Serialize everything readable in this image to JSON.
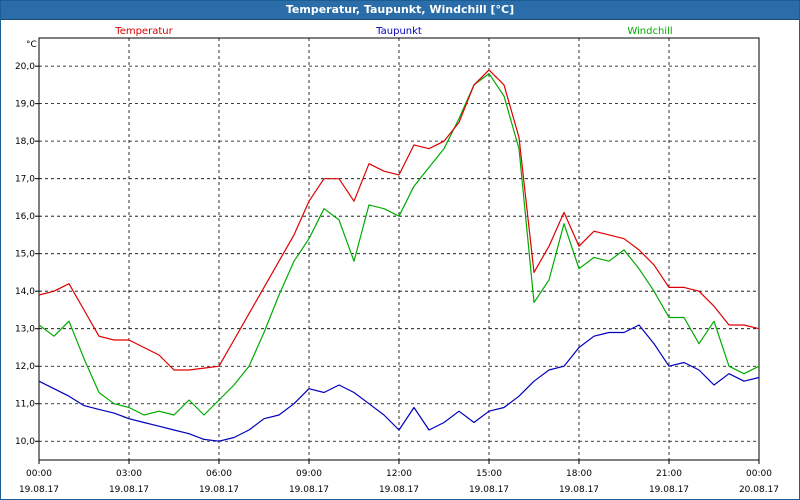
{
  "window": {
    "title": "Temperatur, Taupunkt, Windchill [°C]"
  },
  "chart_data": {
    "type": "line",
    "title": "Temperatur, Taupunkt, Windchill [°C]",
    "ylabel": "°C",
    "xlabel": "",
    "ylim": [
      9.5,
      20.75
    ],
    "xlim": [
      0,
      24
    ],
    "grid": true,
    "yticks": [
      "10,0",
      "11,0",
      "12,0",
      "13,0",
      "14,0",
      "15,0",
      "16,0",
      "17,0",
      "18,0",
      "19,0",
      "20,0"
    ],
    "xticks": [
      {
        "time": "00:00",
        "date": "19.08.17"
      },
      {
        "time": "03:00",
        "date": "19.08.17"
      },
      {
        "time": "06:00",
        "date": "19.08.17"
      },
      {
        "time": "09:00",
        "date": "19.08.17"
      },
      {
        "time": "12:00",
        "date": "19.08.17"
      },
      {
        "time": "15:00",
        "date": "19.08.17"
      },
      {
        "time": "18:00",
        "date": "19.08.17"
      },
      {
        "time": "21:00",
        "date": "19.08.17"
      },
      {
        "time": "00:00",
        "date": "20.08.17"
      }
    ],
    "x": [
      0,
      0.5,
      1,
      1.5,
      2,
      2.5,
      3,
      3.5,
      4,
      4.5,
      5,
      5.5,
      6,
      6.5,
      7,
      7.5,
      8,
      8.5,
      9,
      9.5,
      10,
      10.5,
      11,
      11.5,
      12,
      12.5,
      13,
      13.5,
      14,
      14.5,
      15,
      15.5,
      16,
      16.5,
      17,
      17.5,
      18,
      18.5,
      19,
      19.5,
      20,
      20.5,
      21,
      21.5,
      22,
      22.5,
      23,
      23.5,
      24
    ],
    "series": [
      {
        "name": "Temperatur",
        "color": "#dd0000",
        "values": [
          13.9,
          14.0,
          14.2,
          13.5,
          12.8,
          12.7,
          12.7,
          12.5,
          12.3,
          11.9,
          11.9,
          11.95,
          12.0,
          12.7,
          13.4,
          14.1,
          14.8,
          15.5,
          16.4,
          17.0,
          17.0,
          16.4,
          17.4,
          17.2,
          17.1,
          17.9,
          17.8,
          18.0,
          18.5,
          19.5,
          19.9,
          19.5,
          18.1,
          14.5,
          15.2,
          16.1,
          15.2,
          15.6,
          15.5,
          15.4,
          15.1,
          14.7,
          14.1,
          14.1,
          14.0,
          13.6,
          13.1,
          13.1,
          13.0
        ]
      },
      {
        "name": "Taupunkt",
        "color": "#0000bb",
        "values": [
          11.6,
          11.4,
          11.2,
          10.95,
          10.85,
          10.75,
          10.6,
          10.5,
          10.4,
          10.3,
          10.2,
          10.05,
          10.0,
          10.1,
          10.3,
          10.6,
          10.7,
          11.0,
          11.4,
          11.3,
          11.5,
          11.3,
          11.0,
          10.7,
          10.3,
          10.9,
          10.3,
          10.5,
          10.8,
          10.5,
          10.8,
          10.9,
          11.2,
          11.6,
          11.9,
          12.0,
          12.5,
          12.8,
          12.9,
          12.9,
          13.1,
          12.6,
          12.0,
          12.1,
          11.9,
          11.5,
          11.8,
          11.6,
          11.7
        ]
      },
      {
        "name": "Windchill",
        "color": "#00aa00",
        "values": [
          13.1,
          12.8,
          13.2,
          12.2,
          11.3,
          11.0,
          10.9,
          10.7,
          10.8,
          10.7,
          11.1,
          10.7,
          11.1,
          11.5,
          12.0,
          12.9,
          13.9,
          14.8,
          15.4,
          16.2,
          15.9,
          14.8,
          16.3,
          16.2,
          16.0,
          16.8,
          17.3,
          17.8,
          18.6,
          19.5,
          19.8,
          19.2,
          17.8,
          13.7,
          14.3,
          15.8,
          14.6,
          14.9,
          14.8,
          15.1,
          14.6,
          14.0,
          13.3,
          13.3,
          12.6,
          13.2,
          12.0,
          11.8,
          12.0
        ]
      }
    ]
  }
}
